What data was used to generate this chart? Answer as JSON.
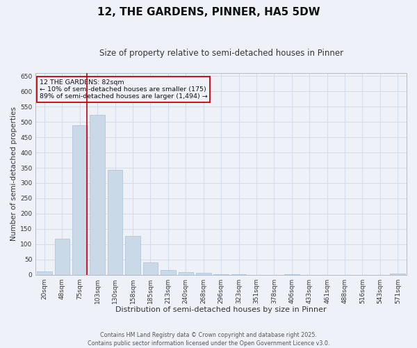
{
  "title": "12, THE GARDENS, PINNER, HA5 5DW",
  "subtitle": "Size of property relative to semi-detached houses in Pinner",
  "xlabel": "Distribution of semi-detached houses by size in Pinner",
  "ylabel": "Number of semi-detached properties",
  "categories": [
    "20sqm",
    "48sqm",
    "75sqm",
    "103sqm",
    "130sqm",
    "158sqm",
    "185sqm",
    "213sqm",
    "240sqm",
    "268sqm",
    "296sqm",
    "323sqm",
    "351sqm",
    "378sqm",
    "406sqm",
    "433sqm",
    "461sqm",
    "488sqm",
    "516sqm",
    "543sqm",
    "571sqm"
  ],
  "values": [
    10,
    118,
    490,
    523,
    343,
    127,
    40,
    16,
    8,
    7,
    2,
    1,
    0,
    0,
    1,
    0,
    0,
    0,
    0,
    0,
    3
  ],
  "bar_color": "#c9d9e8",
  "bar_edge_color": "#aabfd4",
  "grid_color": "#d0d8e8",
  "bg_color": "#eef2f8",
  "vline_color": "#cc0000",
  "vline_x": 2.42,
  "annotation_text": "12 THE GARDENS: 82sqm\n← 10% of semi-detached houses are smaller (175)\n89% of semi-detached houses are larger (1,494) →",
  "annotation_box_color": "#cc0000",
  "ylim": [
    0,
    660
  ],
  "yticks": [
    0,
    50,
    100,
    150,
    200,
    250,
    300,
    350,
    400,
    450,
    500,
    550,
    600,
    650
  ],
  "footer": "Contains HM Land Registry data © Crown copyright and database right 2025.\nContains public sector information licensed under the Open Government Licence v3.0.",
  "title_fontsize": 11,
  "subtitle_fontsize": 8.5,
  "xlabel_fontsize": 8,
  "ylabel_fontsize": 7.5,
  "tick_fontsize": 6.5,
  "footer_fontsize": 5.8,
  "annotation_fontsize": 6.8
}
